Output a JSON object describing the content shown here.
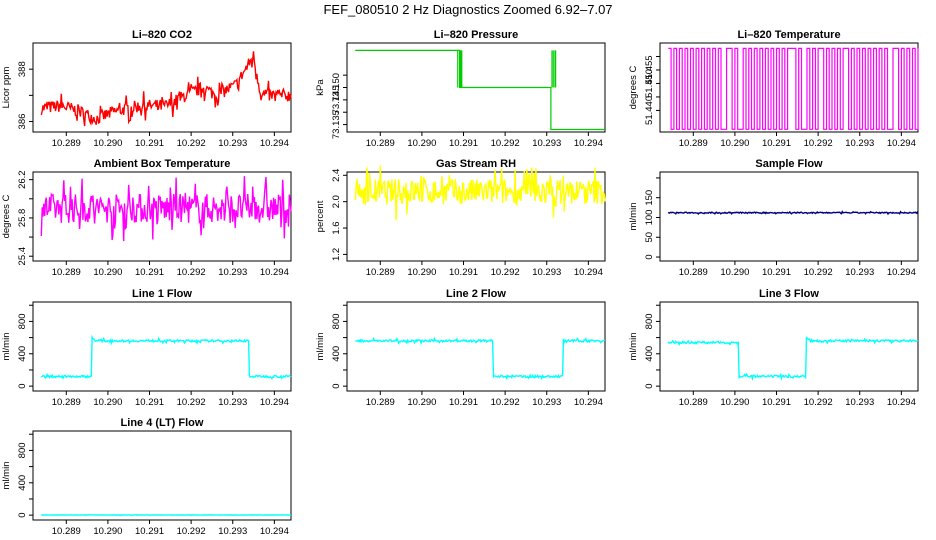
{
  "figure_title": "FEF_080510  2 Hz Diagnostics Zoomed 6.92–7.07",
  "chart_data": [
    {
      "id": "co2",
      "type": "line",
      "title": "Li–820 CO2",
      "ylabel": "Licor ppm",
      "color": "#ff0000",
      "xlim": [
        10.2882,
        10.2944
      ],
      "ylim": [
        385.6,
        389.0
      ],
      "yticks": [
        386,
        387,
        388
      ],
      "ytick_labels": [
        "386",
        "",
        "388"
      ],
      "xticks": [
        10.289,
        10.29,
        10.291,
        10.292,
        10.293,
        10.294
      ],
      "xtick_labels": [
        "10.289",
        "10.290",
        "10.291",
        "10.292",
        "10.293",
        "10.294"
      ],
      "x_start": 10.2884,
      "x_end": 10.2944,
      "profile": [
        [
          0,
          386.5
        ],
        [
          0.08,
          386.6
        ],
        [
          0.15,
          386.4
        ],
        [
          0.22,
          386.1
        ],
        [
          0.3,
          386.4
        ],
        [
          0.4,
          386.6
        ],
        [
          0.5,
          386.6
        ],
        [
          0.58,
          387.0
        ],
        [
          0.65,
          387.3
        ],
        [
          0.7,
          387.0
        ],
        [
          0.78,
          387.4
        ],
        [
          0.85,
          388.5
        ],
        [
          0.88,
          387.0
        ],
        [
          1.0,
          387.0
        ]
      ],
      "noise": 0.35
    },
    {
      "id": "pressure",
      "type": "step",
      "title": "Li–820 Pressure",
      "ylabel": "kPa",
      "color": "#00cc00",
      "xlim": [
        10.2882,
        10.2944
      ],
      "ylim": [
        73.132,
        73.168
      ],
      "yticks": [
        73.135,
        73.14,
        73.145,
        73.15,
        73.155
      ],
      "ytick_labels": [
        "73.135",
        "",
        "73.145",
        "73.150",
        ""
      ],
      "xticks": [
        10.289,
        10.29,
        10.291,
        10.292,
        10.293,
        10.294
      ],
      "xtick_labels": [
        "10.289",
        "10.290",
        "10.291",
        "10.292",
        "10.293",
        "10.294"
      ],
      "x_start": 10.2884,
      "x_end": 10.2944,
      "levels": [
        [
          10.2884,
          73.165
        ],
        [
          10.2909,
          73.15
        ],
        [
          10.2931,
          73.133
        ],
        [
          10.2944,
          73.133
        ]
      ]
    },
    {
      "id": "temp",
      "type": "square",
      "title": "Li–820 Temperature",
      "ylabel": "degrees C",
      "color": "#ff00ff",
      "xlim": [
        10.2882,
        10.2944
      ],
      "ylim": [
        51.432,
        51.465
      ],
      "yticks": [
        51.44,
        51.445,
        51.45,
        51.455,
        51.46
      ],
      "ytick_labels": [
        "51.440",
        "",
        "51.450",
        "51.455",
        ""
      ],
      "xticks": [
        10.289,
        10.29,
        10.291,
        10.292,
        10.293,
        10.294
      ],
      "xtick_labels": [
        "10.289",
        "10.290",
        "10.291",
        "10.292",
        "10.293",
        "10.294"
      ],
      "x_start": 10.2884,
      "x_end": 10.2944,
      "low": 51.433,
      "high": 51.463
    },
    {
      "id": "ambient",
      "type": "line",
      "title": "Ambient Box Temperature",
      "ylabel": "degrees C",
      "color": "#ff00ff",
      "xlim": [
        10.2882,
        10.2944
      ],
      "ylim": [
        25.35,
        26.28
      ],
      "yticks": [
        25.4,
        25.6,
        25.8,
        26.0,
        26.2
      ],
      "ytick_labels": [
        "25.4",
        "",
        "25.8",
        "",
        "26.2"
      ],
      "xticks": [
        10.289,
        10.29,
        10.291,
        10.292,
        10.293,
        10.294
      ],
      "xtick_labels": [
        "10.289",
        "10.290",
        "10.291",
        "10.292",
        "10.293",
        "10.294"
      ],
      "x_start": 10.2884,
      "x_end": 10.2944,
      "profile": [
        [
          0,
          25.9
        ],
        [
          1,
          25.9
        ]
      ],
      "noise": 0.22
    },
    {
      "id": "rh",
      "type": "line",
      "title": "Gas Stream RH",
      "ylabel": "percent",
      "color": "#ffff00",
      "xlim": [
        10.2882,
        10.2944
      ],
      "ylim": [
        1.1,
        2.45
      ],
      "yticks": [
        1.2,
        1.6,
        2.0,
        2.4
      ],
      "ytick_labels": [
        "1.2",
        "1.6",
        "2.0",
        "2.4"
      ],
      "xticks": [
        10.289,
        10.29,
        10.291,
        10.292,
        10.293,
        10.294
      ],
      "xtick_labels": [
        "10.289",
        "10.290",
        "10.291",
        "10.292",
        "10.293",
        "10.294"
      ],
      "x_start": 10.2884,
      "x_end": 10.2944,
      "profile": [
        [
          0,
          2.15
        ],
        [
          1,
          2.15
        ]
      ],
      "noise": 0.28
    },
    {
      "id": "sample",
      "type": "line",
      "title": "Sample Flow",
      "ylabel": "ml/min",
      "color": "#000080",
      "xlim": [
        10.2882,
        10.2944
      ],
      "ylim": [
        -10,
        215
      ],
      "yticks": [
        0,
        50,
        100,
        150,
        200
      ],
      "ytick_labels": [
        "0",
        "50",
        "100",
        "150",
        ""
      ],
      "xticks": [
        10.289,
        10.29,
        10.291,
        10.292,
        10.293,
        10.294
      ],
      "xtick_labels": [
        "10.289",
        "10.290",
        "10.291",
        "10.292",
        "10.293",
        "10.294"
      ],
      "x_start": 10.2884,
      "x_end": 10.2944,
      "profile": [
        [
          0,
          112
        ],
        [
          1,
          112
        ]
      ],
      "noise": 2
    },
    {
      "id": "line1",
      "type": "line",
      "title": "Line 1 Flow",
      "ylabel": "ml/min",
      "color": "#00ffff",
      "xlim": [
        10.2882,
        10.2944
      ],
      "ylim": [
        -60,
        1040
      ],
      "yticks": [
        0,
        200,
        400,
        600,
        800,
        1000
      ],
      "ytick_labels": [
        "0",
        "",
        "400",
        "",
        "800",
        ""
      ],
      "xticks": [
        10.289,
        10.29,
        10.291,
        10.292,
        10.293,
        10.294
      ],
      "xtick_labels": [
        "10.289",
        "10.290",
        "10.291",
        "10.292",
        "10.293",
        "10.294"
      ],
      "x_start": 10.2884,
      "x_end": 10.2944,
      "profile": [
        [
          0,
          120
        ],
        [
          0.2,
          120
        ],
        [
          0.201,
          600
        ],
        [
          0.22,
          560
        ],
        [
          0.83,
          560
        ],
        [
          0.831,
          120
        ],
        [
          1.0,
          120
        ]
      ],
      "noise": 18
    },
    {
      "id": "line2",
      "type": "line",
      "title": "Line 2 Flow",
      "ylabel": "ml/min",
      "color": "#00ffff",
      "xlim": [
        10.2882,
        10.2944
      ],
      "ylim": [
        -60,
        1040
      ],
      "yticks": [
        0,
        200,
        400,
        600,
        800,
        1000
      ],
      "ytick_labels": [
        "0",
        "",
        "400",
        "",
        "800",
        ""
      ],
      "xticks": [
        10.289,
        10.29,
        10.291,
        10.292,
        10.293,
        10.294
      ],
      "xtick_labels": [
        "10.289",
        "10.290",
        "10.291",
        "10.292",
        "10.293",
        "10.294"
      ],
      "x_start": 10.2884,
      "x_end": 10.2944,
      "profile": [
        [
          0,
          560
        ],
        [
          0.55,
          560
        ],
        [
          0.551,
          120
        ],
        [
          0.83,
          120
        ],
        [
          0.831,
          560
        ],
        [
          1.0,
          560
        ]
      ],
      "noise": 18
    },
    {
      "id": "line3",
      "type": "line",
      "title": "Line 3 Flow",
      "ylabel": "ml/min",
      "color": "#00ffff",
      "xlim": [
        10.2882,
        10.2944
      ],
      "ylim": [
        -60,
        1040
      ],
      "yticks": [
        0,
        200,
        400,
        600,
        800,
        1000
      ],
      "ytick_labels": [
        "0",
        "",
        "400",
        "",
        "800",
        ""
      ],
      "xticks": [
        10.289,
        10.29,
        10.291,
        10.292,
        10.293,
        10.294
      ],
      "xtick_labels": [
        "10.289",
        "10.290",
        "10.291",
        "10.292",
        "10.293",
        "10.294"
      ],
      "x_start": 10.2884,
      "x_end": 10.2944,
      "profile": [
        [
          0,
          540
        ],
        [
          0.28,
          540
        ],
        [
          0.281,
          120
        ],
        [
          0.55,
          120
        ],
        [
          0.551,
          600
        ],
        [
          0.57,
          560
        ],
        [
          1.0,
          560
        ]
      ],
      "noise": 18
    },
    {
      "id": "line4",
      "type": "line",
      "title": "Line 4 (LT) Flow",
      "ylabel": "ml/min",
      "color": "#00ffff",
      "xlim": [
        10.2882,
        10.2944
      ],
      "ylim": [
        -60,
        1040
      ],
      "yticks": [
        0,
        200,
        400,
        600,
        800,
        1000
      ],
      "ytick_labels": [
        "0",
        "",
        "400",
        "",
        "800",
        ""
      ],
      "xticks": [
        10.289,
        10.29,
        10.291,
        10.292,
        10.293,
        10.294
      ],
      "xtick_labels": [
        "10.289",
        "10.290",
        "10.291",
        "10.292",
        "10.293",
        "10.294"
      ],
      "x_start": 10.2884,
      "x_end": 10.2944,
      "profile": [
        [
          0,
          2
        ],
        [
          1,
          2
        ]
      ],
      "noise": 3
    }
  ]
}
